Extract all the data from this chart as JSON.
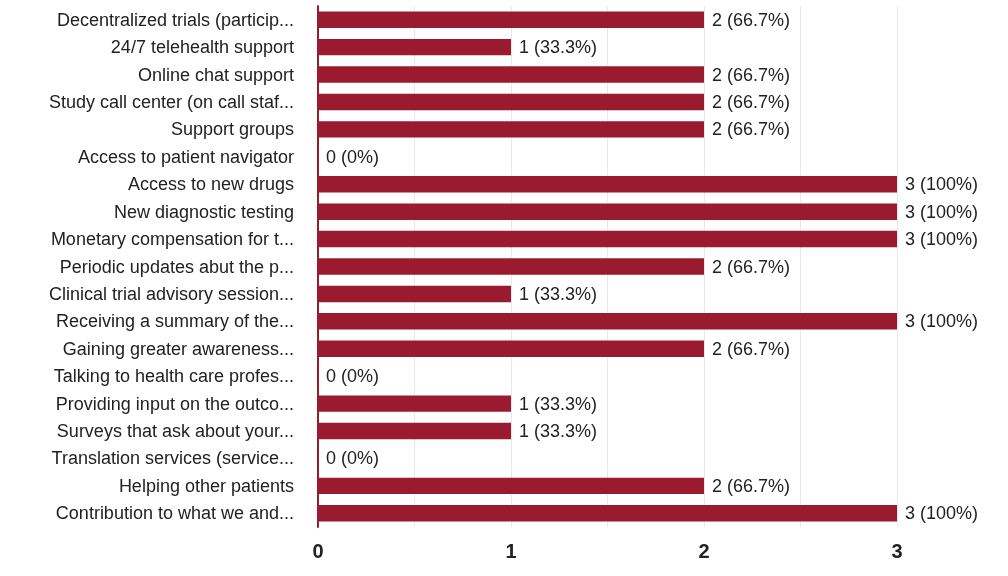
{
  "chart_data": {
    "type": "bar",
    "orientation": "horizontal",
    "categories": [
      "Decentralized trials (particip...",
      "24/7 telehealth support",
      "Online chat support",
      "Study call center (on call staf...",
      "Support groups",
      "Access to patient navigator",
      "Access to new drugs",
      "New diagnostic testing",
      "Monetary compensation for t...",
      "Periodic updates abut the p...",
      "Clinical trial advisory session...",
      "Receiving a summary of the...",
      "Gaining greater awareness...",
      "Talking to health care profes...",
      "Providing input on the outco...",
      "Surveys that ask about your...",
      "Translation services (service...",
      "Helping other patients",
      "Contribution to what we and..."
    ],
    "values": [
      2,
      1,
      2,
      2,
      2,
      0,
      3,
      3,
      3,
      2,
      1,
      3,
      2,
      0,
      1,
      1,
      0,
      2,
      3
    ],
    "value_labels": [
      "2 (66.7%)",
      "1 (33.3%)",
      "2 (66.7%)",
      "2 (66.7%)",
      "2 (66.7%)",
      "0 (0%)",
      "3 (100%)",
      "3 (100%)",
      "3 (100%)",
      "2 (66.7%)",
      "1 (33.3%)",
      "3 (100%)",
      "2 (66.7%)",
      "0 (0%)",
      "1 (33.3%)",
      "1 (33.3%)",
      "0 (0%)",
      "2 (66.7%)",
      "3 (100%)"
    ],
    "color": "#9a1a2f",
    "xlim": [
      0,
      3
    ],
    "xticks": [
      0,
      {
        "value": 0.5,
        "label": null
      },
      1,
      {
        "value": 1.5,
        "label": null
      },
      2,
      {
        "value": 2.5,
        "label": null
      },
      3
    ],
    "grid": "x"
  }
}
